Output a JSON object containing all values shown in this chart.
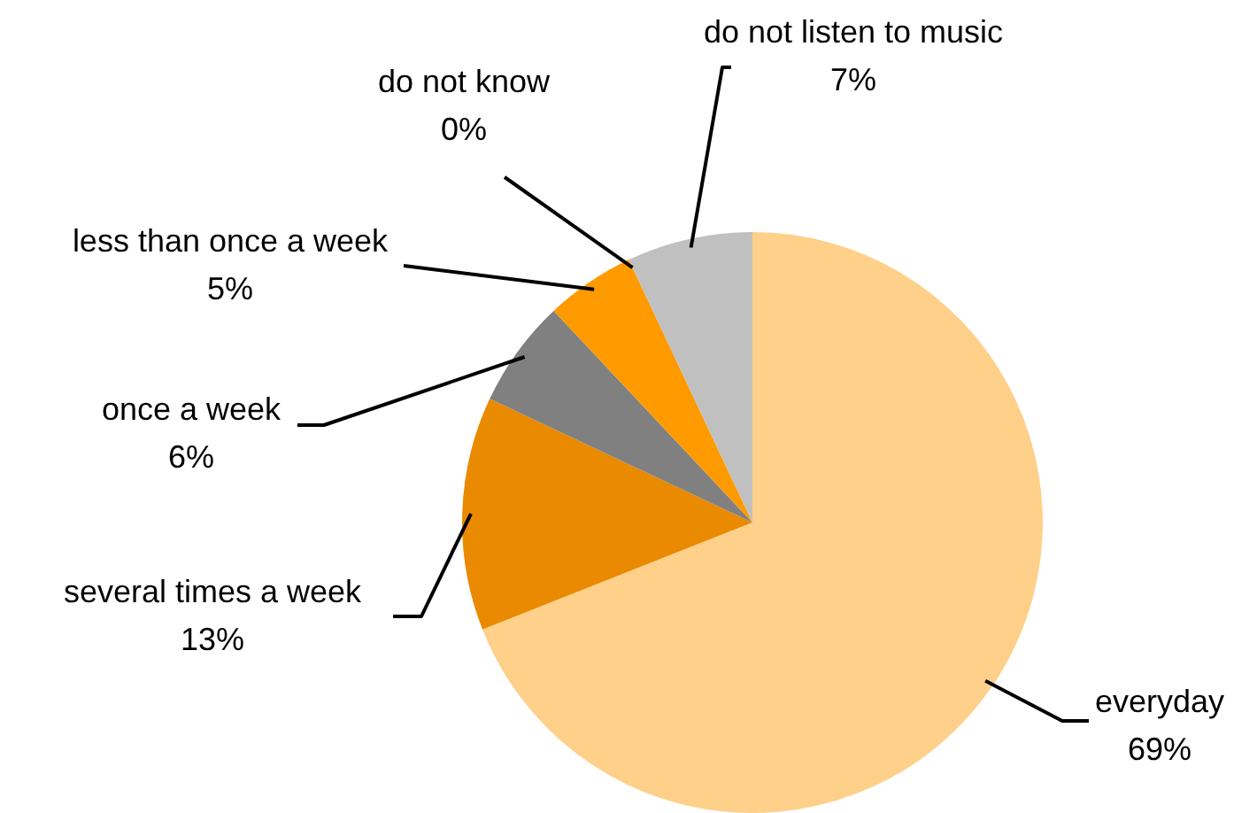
{
  "chart_data": {
    "type": "pie",
    "categories": [
      "everyday",
      "several times a week",
      "once a week",
      "less than once a week",
      "do not know",
      "do not listen to music"
    ],
    "values": [
      69,
      13,
      6,
      5,
      0,
      7
    ],
    "colors": [
      "#ffd08a",
      "#e98a00",
      "#808080",
      "#ff9a00",
      "#000000",
      "#c0c0c0"
    ],
    "value_labels": [
      "69%",
      "13%",
      "6%",
      "5%",
      "0%",
      "7%"
    ],
    "legend": false
  }
}
